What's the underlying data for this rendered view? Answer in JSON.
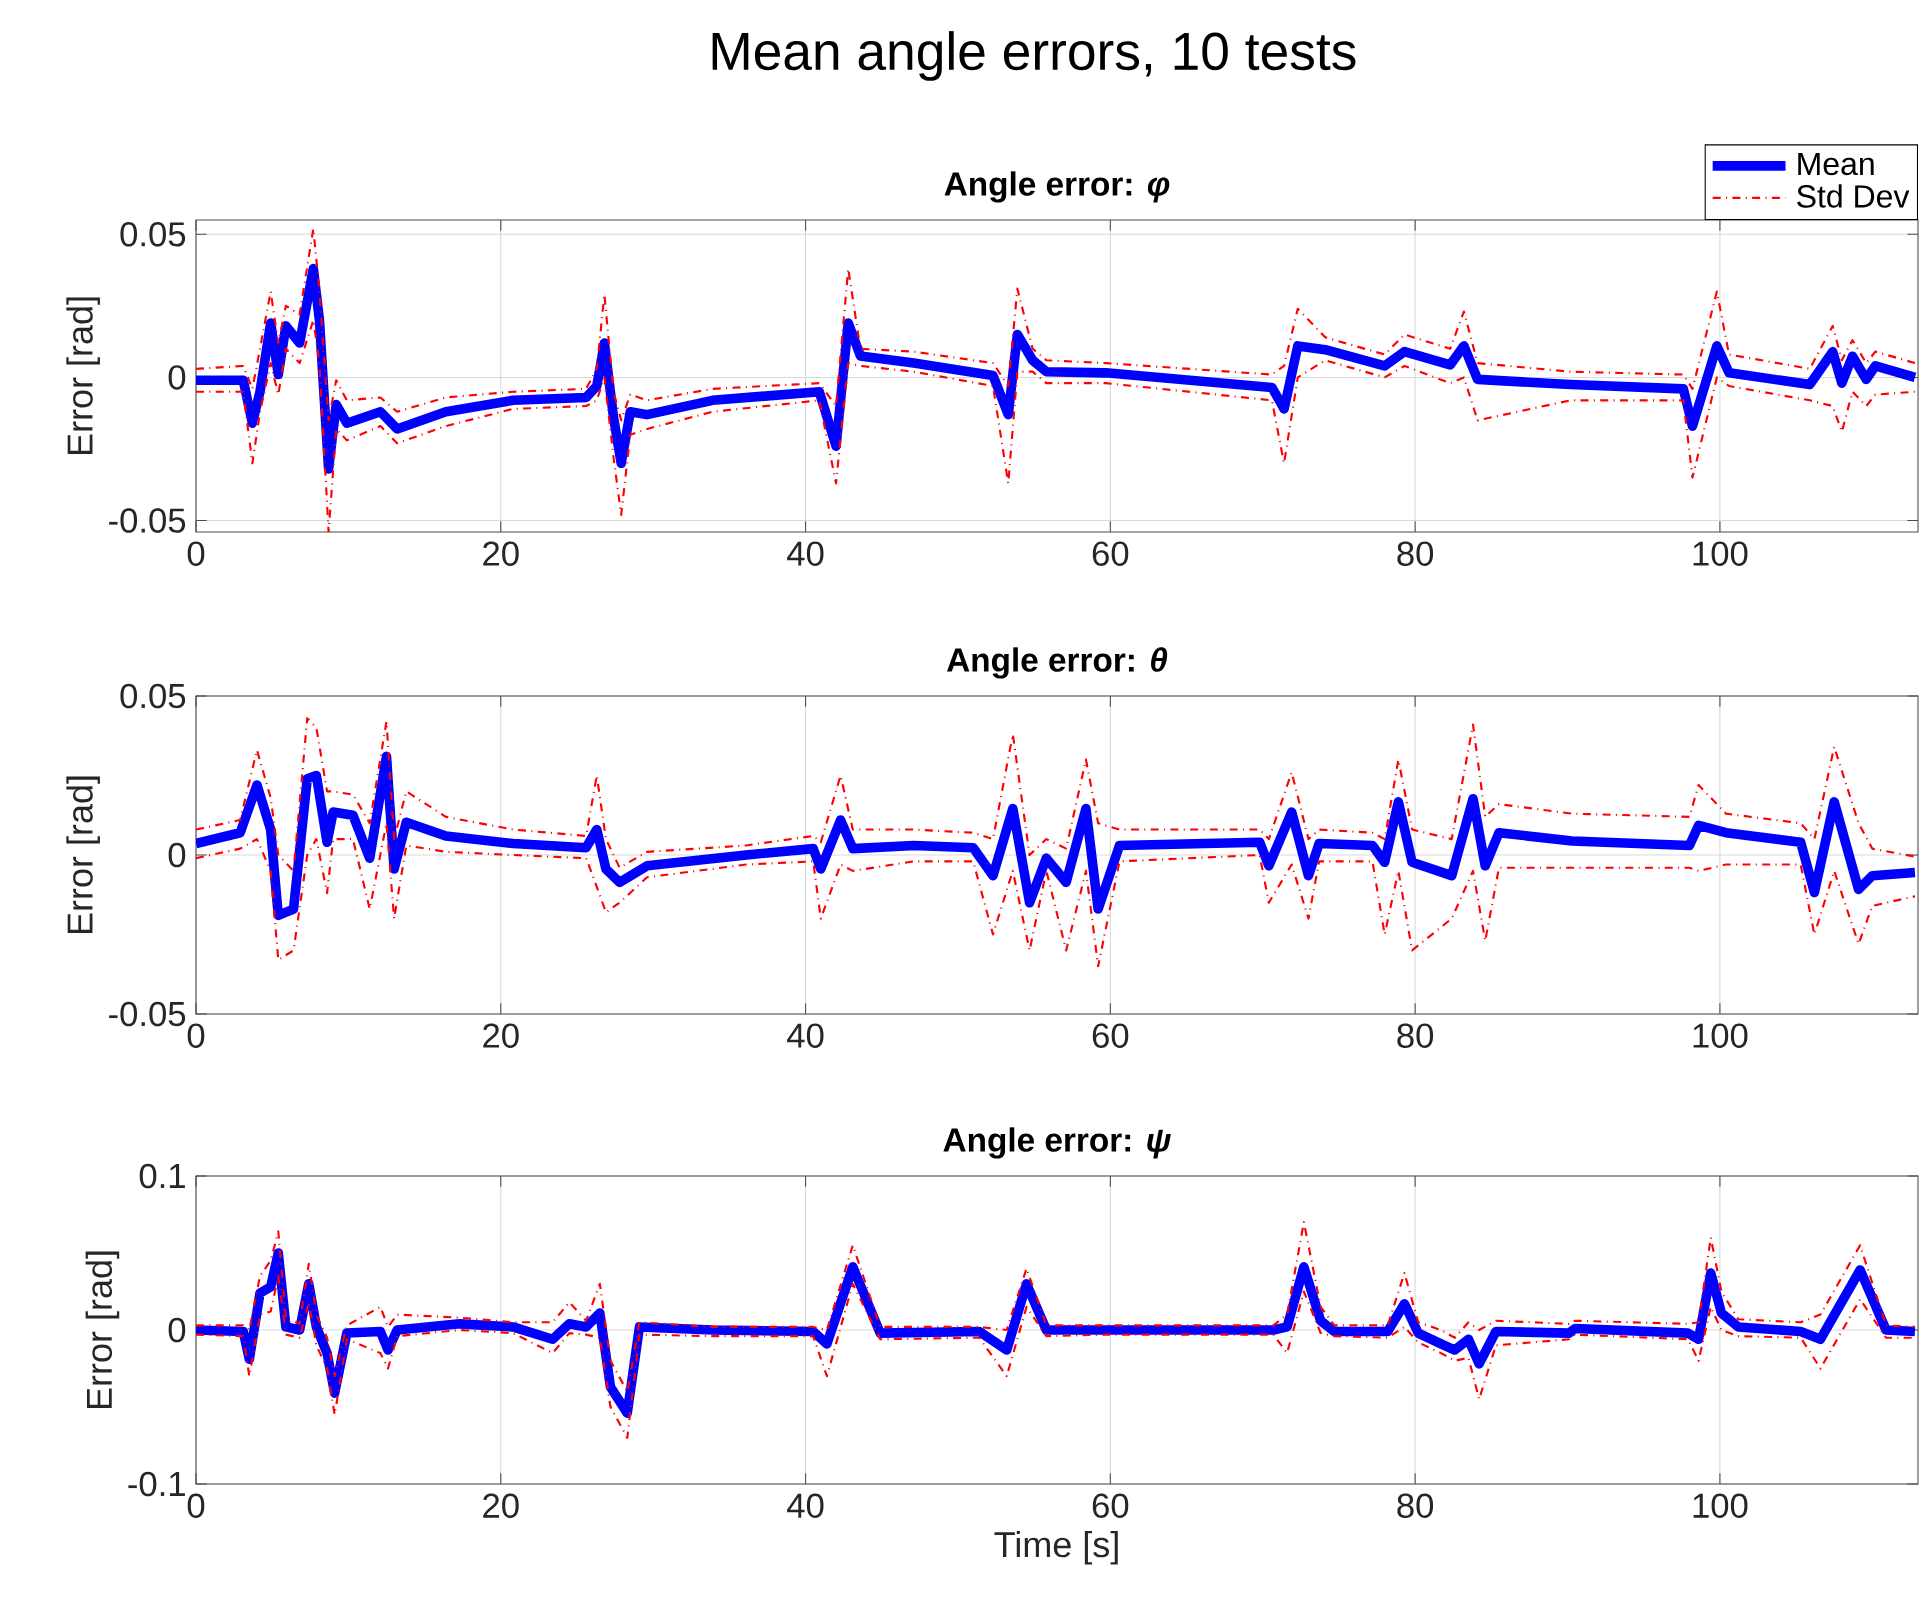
{
  "chart_data": [
    {
      "type": "line",
      "title": "Mean angle errors, 10 tests",
      "subtitle": "Angle error: *φ*",
      "ylabel": "Error [rad]",
      "xlim": [
        0,
        113
      ],
      "xticks": [
        0,
        20,
        40,
        60,
        80,
        100
      ],
      "ylim": [
        -0.054,
        0.055
      ],
      "yticks": [
        -0.05,
        0,
        0.05
      ],
      "grid": true,
      "legend": "top right",
      "x": [
        0,
        3.1,
        3.7,
        4.2,
        4.9,
        5.4,
        5.9,
        6.8,
        7.7,
        8.1,
        8.7,
        9.2,
        9.9,
        12.1,
        13.2,
        16.4,
        20.8,
        25.6,
        26.3,
        26.8,
        27.4,
        27.9,
        28.5,
        29.6,
        33.9,
        40.9,
        42,
        42.8,
        43.6,
        47.1,
        52.3,
        53.3,
        53.9,
        54.9,
        55.8,
        59.7,
        70.6,
        71.4,
        72.3,
        74.1,
        78,
        79.3,
        82.3,
        83.2,
        84.1,
        90.2,
        97.6,
        98.2,
        99.8,
        100.6,
        105.9,
        107.4,
        108,
        108.7,
        109.6,
        110.2,
        112.8
      ],
      "series": [
        {
          "name": "Mean",
          "color": "#0000ff",
          "line_style": "solid",
          "values": [
            -0.001,
            -0.001,
            -0.016,
            -0.005,
            0.019,
            0.001,
            0.018,
            0.012,
            0.038,
            0.02,
            -0.032,
            -0.0095,
            -0.016,
            -0.012,
            -0.018,
            -0.012,
            -0.008,
            -0.007,
            -0.003,
            0.012,
            -0.014,
            -0.03,
            -0.012,
            -0.013,
            -0.008,
            -0.005,
            -0.024,
            0.019,
            0.0075,
            0.005,
            0.0007,
            -0.013,
            0.015,
            0.006,
            0.002,
            0.0016,
            -0.0035,
            -0.011,
            0.011,
            0.0097,
            0.004,
            0.009,
            0.0044,
            0.011,
            -0.0007,
            -0.0025,
            -0.004,
            -0.017,
            0.011,
            0.0016,
            -0.0025,
            0.009,
            -0.002,
            0.0074,
            -0.0007,
            0.004,
            0
          ]
        },
        {
          "name": "Std Dev",
          "color": "#ff0000",
          "line_style": "dashdot",
          "values": [
            0.003,
            0.004,
            -0.004,
            0.01,
            0.03,
            0.012,
            0.025,
            0.022,
            0.052,
            0.03,
            -0.015,
            -0.001,
            -0.008,
            -0.007,
            -0.012,
            -0.007,
            -0.005,
            -0.004,
            0.003,
            0.029,
            -0.005,
            -0.015,
            -0.006,
            -0.008,
            -0.004,
            -0.002,
            -0.01,
            0.038,
            0.01,
            0.009,
            0.005,
            -0.003,
            0.031,
            0.01,
            0.006,
            0.005,
            0.001,
            0.004,
            0.024,
            0.014,
            0.008,
            0.015,
            0.01,
            0.023,
            0.005,
            0.002,
            0.001,
            -0.004,
            0.03,
            0.008,
            0.003,
            0.018,
            0.006,
            0.013,
            0.005,
            0.009,
            0.005
          ]
        },
        {
          "color": "#ff0000",
          "line_style": "dashdot",
          "values": [
            -0.005,
            -0.005,
            -0.03,
            -0.012,
            0.005,
            -0.006,
            0.01,
            0.005,
            0.02,
            0.005,
            -0.054,
            -0.018,
            -0.022,
            -0.017,
            -0.023,
            -0.017,
            -0.011,
            -0.01,
            -0.008,
            0,
            -0.028,
            -0.048,
            -0.02,
            -0.018,
            -0.012,
            -0.008,
            -0.037,
            0.005,
            0.004,
            0.002,
            -0.003,
            -0.037,
            0.002,
            0.002,
            -0.002,
            -0.002,
            -0.008,
            -0.03,
            0,
            0.006,
            0,
            0.004,
            -0.002,
            0,
            -0.015,
            -0.008,
            -0.008,
            -0.035,
            0,
            -0.003,
            -0.008,
            -0.01,
            -0.019,
            -0.005,
            -0.01,
            -0.006,
            -0.005
          ]
        }
      ]
    },
    {
      "type": "line",
      "subtitle": "Angle error: *θ*",
      "ylabel": "Error [rad]",
      "xlim": [
        0,
        113
      ],
      "xticks": [
        0,
        20,
        40,
        60,
        80,
        100
      ],
      "ylim": [
        -0.05,
        0.05
      ],
      "yticks": [
        -0.05,
        0,
        0.05
      ],
      "grid": true,
      "x": [
        0,
        2.9,
        4.0,
        4.9,
        5.4,
        6.4,
        7.3,
        7.9,
        8.6,
        9.0,
        10.3,
        11.4,
        12.5,
        13.0,
        13.8,
        16.4,
        20.8,
        25.6,
        26.3,
        26.9,
        27.8,
        29.6,
        36.1,
        40.5,
        41.0,
        42.3,
        43.1,
        47.1,
        51.0,
        52.3,
        53.6,
        54.7,
        55.8,
        57.1,
        58.4,
        59.2,
        60.6,
        69.8,
        70.4,
        71.9,
        73.0,
        73.7,
        77.2,
        78.0,
        78.9,
        79.8,
        82.4,
        83.8,
        84.6,
        85.5,
        90.3,
        98.0,
        98.6,
        100.4,
        105.3,
        106.2,
        107.5,
        109.1,
        110.0,
        112.8
      ],
      "series": [
        {
          "color": "#0000ff",
          "line_style": "solid",
          "values": [
            0.0036,
            0.007,
            0.022,
            0.008,
            -0.019,
            -0.017,
            0.024,
            0.025,
            0.004,
            0.0135,
            0.0125,
            -0.001,
            0.031,
            -0.0044,
            0.0103,
            0.006,
            0.0036,
            0.0023,
            0.008,
            -0.0044,
            -0.0086,
            -0.0034,
            0,
            0.002,
            -0.0044,
            0.011,
            0.002,
            0.003,
            0.0023,
            -0.0065,
            0.0146,
            -0.015,
            -0.001,
            -0.0086,
            0.0146,
            -0.017,
            0.003,
            0.004,
            -0.0034,
            0.0135,
            -0.0065,
            0.0036,
            0.003,
            -0.0023,
            0.0167,
            -0.0023,
            -0.0065,
            0.0177,
            -0.0034,
            0.007,
            0.0044,
            0.003,
            0.0093,
            0.007,
            0.004,
            -0.0118,
            0.0167,
            -0.0108,
            -0.0065,
            -0.0055
          ]
        },
        {
          "color": "#ff0000",
          "line_style": "dashdot",
          "values": [
            0.008,
            0.011,
            0.033,
            0.018,
            0,
            -0.005,
            0.043,
            0.04,
            0.02,
            0.02,
            0.019,
            0.01,
            0.042,
            0.005,
            0.02,
            0.012,
            0.008,
            0.006,
            0.025,
            0.005,
            -0.004,
            0.001,
            0.003,
            0.006,
            0.004,
            0.025,
            0.008,
            0.008,
            0.007,
            0.005,
            0.038,
            0,
            0.005,
            0.002,
            0.03,
            0.01,
            0.008,
            0.008,
            0.005,
            0.026,
            0.005,
            0.008,
            0.007,
            0.005,
            0.03,
            0.008,
            0.005,
            0.041,
            0.012,
            0.016,
            0.013,
            0.012,
            0.022,
            0.013,
            0.01,
            0.005,
            0.034,
            0.01,
            0.002,
            -0.0005
          ]
        },
        {
          "color": "#ff0000",
          "line_style": "dashdot",
          "values": [
            -0.001,
            0.002,
            0.005,
            -0.005,
            -0.033,
            -0.03,
            0,
            0.005,
            -0.012,
            0.005,
            0.005,
            -0.017,
            0.01,
            -0.02,
            0.003,
            0.001,
            0,
            -0.001,
            -0.01,
            -0.018,
            -0.015,
            -0.007,
            -0.003,
            -0.002,
            -0.02,
            -0.003,
            -0.005,
            -0.002,
            -0.002,
            -0.025,
            -0.005,
            -0.03,
            -0.005,
            -0.03,
            -0.005,
            -0.035,
            -0.002,
            0,
            -0.015,
            -0.003,
            -0.02,
            -0.002,
            -0.002,
            -0.025,
            -0.005,
            -0.03,
            -0.02,
            -0.005,
            -0.027,
            -0.004,
            -0.004,
            -0.004,
            -0.005,
            -0.003,
            -0.003,
            -0.025,
            -0.005,
            -0.028,
            -0.016,
            -0.013
          ]
        }
      ]
    },
    {
      "type": "line",
      "subtitle": "Angle error: *ψ*",
      "xlabel": "Time [s]",
      "ylabel": "Error [rad]",
      "xlim": [
        0,
        113
      ],
      "xticks": [
        0,
        20,
        40,
        60,
        80,
        100
      ],
      "ylim": [
        -0.1,
        0.1
      ],
      "yticks": [
        -0.1,
        0,
        0.1
      ],
      "grid": true,
      "x": [
        0,
        3.1,
        3.5,
        4.2,
        4.9,
        5.4,
        5.9,
        6.8,
        7.4,
        7.9,
        8.6,
        9.1,
        9.9,
        12.1,
        12.6,
        13.2,
        17.3,
        20.8,
        23.4,
        24.5,
        25.6,
        26.5,
        27.2,
        28.3,
        29.1,
        33.9,
        40.5,
        41.4,
        43.1,
        44.9,
        51.4,
        53.2,
        54.5,
        55.8,
        59.8,
        70.7,
        71.6,
        72.7,
        73.8,
        74.7,
        78.2,
        79.3,
        80.2,
        81.7,
        82.6,
        83.5,
        84.2,
        85.3,
        90.1,
        90.5,
        97.9,
        98.6,
        99.4,
        100.1,
        101.2,
        105.3,
        106.6,
        109.2,
        110.9,
        112.8
      ],
      "series": [
        {
          "color": "#0000ff",
          "line_style": "solid",
          "values": [
            0,
            -0.001,
            -0.019,
            0.024,
            0.028,
            0.05,
            0.002,
            0,
            0.03,
            0.002,
            -0.015,
            -0.041,
            -0.002,
            -0.001,
            -0.013,
            0,
            0.004,
            0.002,
            -0.006,
            0.004,
            0.002,
            0.011,
            -0.037,
            -0.054,
            0.002,
            0,
            -0.001,
            -0.009,
            0.041,
            -0.002,
            -0.001,
            -0.013,
            0.03,
            0,
            0,
            0,
            0.002,
            0.041,
            0.006,
            -0.001,
            -0.001,
            0.017,
            -0.002,
            -0.009,
            -0.013,
            -0.006,
            -0.022,
            -0.001,
            -0.002,
            0.001,
            -0.002,
            -0.006,
            0.037,
            0.011,
            0.002,
            -0.001,
            -0.006,
            0.039,
            0,
            -0.001
          ]
        },
        {
          "color": "#ff0000",
          "line_style": "dashdot",
          "values": [
            0.003,
            0.003,
            0,
            0.035,
            0.045,
            0.064,
            0.007,
            0.004,
            0.043,
            0.01,
            -0.005,
            -0.03,
            0.003,
            0.015,
            0.002,
            0.01,
            0.008,
            0.005,
            0.005,
            0.018,
            0.006,
            0.03,
            -0.02,
            -0.04,
            0.005,
            0.002,
            0.002,
            0,
            0.055,
            0.002,
            0.002,
            0,
            0.04,
            0.003,
            0.003,
            0.003,
            0.01,
            0.07,
            0.015,
            0.003,
            0.003,
            0.037,
            0.005,
            0,
            -0.005,
            0.005,
            0,
            0.006,
            0.004,
            0.006,
            0.004,
            0.005,
            0.06,
            0.025,
            0.007,
            0.005,
            0.01,
            0.055,
            0.003,
            0.002
          ]
        },
        {
          "color": "#ff0000",
          "line_style": "dashdot",
          "values": [
            -0.003,
            -0.004,
            -0.03,
            0.01,
            0.012,
            0.035,
            -0.003,
            -0.005,
            0.018,
            -0.01,
            -0.025,
            -0.055,
            -0.006,
            -0.015,
            -0.025,
            -0.004,
            0,
            -0.002,
            -0.015,
            -0.002,
            -0.003,
            -0.005,
            -0.05,
            -0.07,
            -0.003,
            -0.004,
            -0.004,
            -0.03,
            0.03,
            -0.006,
            -0.005,
            -0.03,
            0.015,
            -0.004,
            -0.003,
            -0.003,
            -0.015,
            0.025,
            -0.002,
            -0.004,
            -0.005,
            0.002,
            -0.008,
            -0.015,
            -0.02,
            -0.018,
            -0.045,
            -0.01,
            -0.006,
            -0.003,
            -0.006,
            -0.02,
            0.015,
            0,
            -0.004,
            -0.005,
            -0.025,
            0.02,
            -0.005,
            -0.005
          ]
        }
      ]
    }
  ]
}
